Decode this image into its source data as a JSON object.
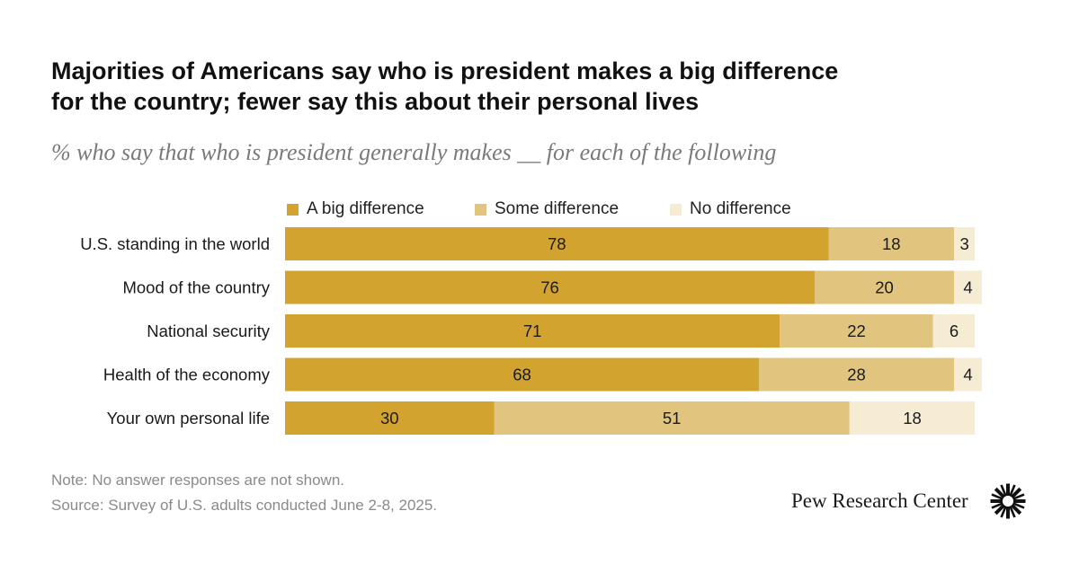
{
  "chart_data": {
    "type": "bar",
    "orientation": "horizontal",
    "stacked": true,
    "title": "Majorities of Americans say who is president makes a big difference for the country; fewer say this about their personal lives",
    "title_lines": [
      "Majorities of Americans say who is president makes a big difference",
      "for the country; fewer say this about their personal lives"
    ],
    "subtitle": "% who say that who is president generally makes __ for each of the following",
    "categories": [
      "U.S. standing in the world",
      "Mood of the country",
      "National security",
      "Health of the economy",
      "Your own personal life"
    ],
    "series": [
      {
        "name": "A big difference",
        "color": "#d2a42f",
        "values": [
          78,
          76,
          71,
          68,
          30
        ]
      },
      {
        "name": "Some difference",
        "color": "#e1c57e",
        "values": [
          18,
          20,
          22,
          28,
          51
        ]
      },
      {
        "name": "No difference",
        "color": "#f5ecd3",
        "values": [
          3,
          4,
          6,
          4,
          18
        ]
      }
    ],
    "xlim": [
      0,
      100
    ],
    "xlabel": "",
    "ylabel": "",
    "grid": false,
    "legend_position": "top"
  },
  "footer": {
    "note": "Note: No answer responses are not shown.",
    "source": "Source: Survey of U.S. adults conducted June 2-8, 2025.",
    "brand": "Pew Research Center"
  },
  "icons": {
    "brand_logo": "pew-sunburst-icon"
  }
}
